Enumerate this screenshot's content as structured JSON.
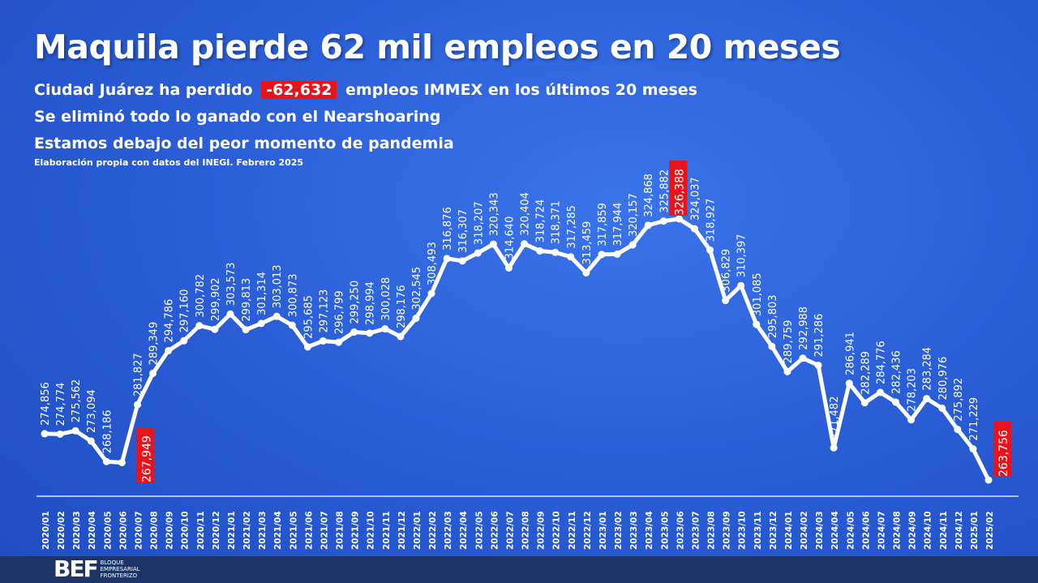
{
  "header": {
    "title": "Maquila pierde 62 mil empleos en 20 meses",
    "line1_pre": "Ciudad Juárez ha perdido",
    "line1_highlight": "-62,632",
    "line1_post": "empleos IMMEX en los últimos 20 meses",
    "line2": "Se eliminó todo lo ganado con el Nearshoaring",
    "line3": "Estamos debajo del peor momento de pandemia",
    "source": "Elaboración propia con datos del INEGI. Febrero 2025"
  },
  "footer": {
    "logo_mark": "BEF",
    "logo_text": [
      "BLOQUE",
      "EMPRESARIAL",
      "FRONTERIZO"
    ]
  },
  "colors": {
    "line": "#ffffff",
    "highlight": "#e8141b",
    "background": "#2b5fd8"
  },
  "chart_data": {
    "type": "line",
    "title": "Maquila pierde 62 mil empleos en 20 meses",
    "xlabel": "",
    "ylabel": "Empleos IMMEX",
    "ylim": [
      263756,
      326388
    ],
    "grid": false,
    "highlighted": [
      "2020/06",
      "2023/06",
      "2025/02"
    ],
    "categories": [
      "2020/01",
      "2020/02",
      "2020/03",
      "2020/04",
      "2020/05",
      "2020/06",
      "2020/07",
      "2020/08",
      "2020/09",
      "2020/10",
      "2020/11",
      "2020/12",
      "2021/01",
      "2021/02",
      "2021/03",
      "2021/04",
      "2021/05",
      "2021/06",
      "2021/07",
      "2021/08",
      "2021/09",
      "2021/10",
      "2021/11",
      "2021/12",
      "2022/01",
      "2022/02",
      "2022/03",
      "2022/04",
      "2022/05",
      "2022/06",
      "2022/07",
      "2022/08",
      "2022/09",
      "2022/10",
      "2022/11",
      "2022/12",
      "2023/01",
      "2023/02",
      "2023/03",
      "2023/04",
      "2023/05",
      "2023/06",
      "2023/07",
      "2023/08",
      "2023/09",
      "2023/10",
      "2023/11",
      "2023/12",
      "2024/01",
      "2024/02",
      "2024/03",
      "2024/04",
      "2024/05",
      "2024/06",
      "2024/07",
      "2024/08",
      "2024/09",
      "2024/10",
      "2024/11",
      "2024/12",
      "2025/01",
      "2025/02"
    ],
    "values": [
      274856,
      274774,
      275562,
      273094,
      268186,
      267949,
      281827,
      289349,
      294786,
      297160,
      300782,
      299902,
      303573,
      299813,
      301314,
      303013,
      300873,
      295685,
      297123,
      296799,
      299250,
      298994,
      300028,
      298176,
      302545,
      308493,
      316876,
      316307,
      318207,
      320343,
      314640,
      320404,
      318724,
      318371,
      317285,
      313459,
      317859,
      317944,
      320157,
      324868,
      325882,
      326388,
      324037,
      318927,
      306829,
      310397,
      301085,
      295803,
      289759,
      292988,
      291286,
      271482,
      286941,
      282289,
      284776,
      282436,
      278203,
      283284,
      280976,
      275892,
      271229,
      263756
    ]
  }
}
